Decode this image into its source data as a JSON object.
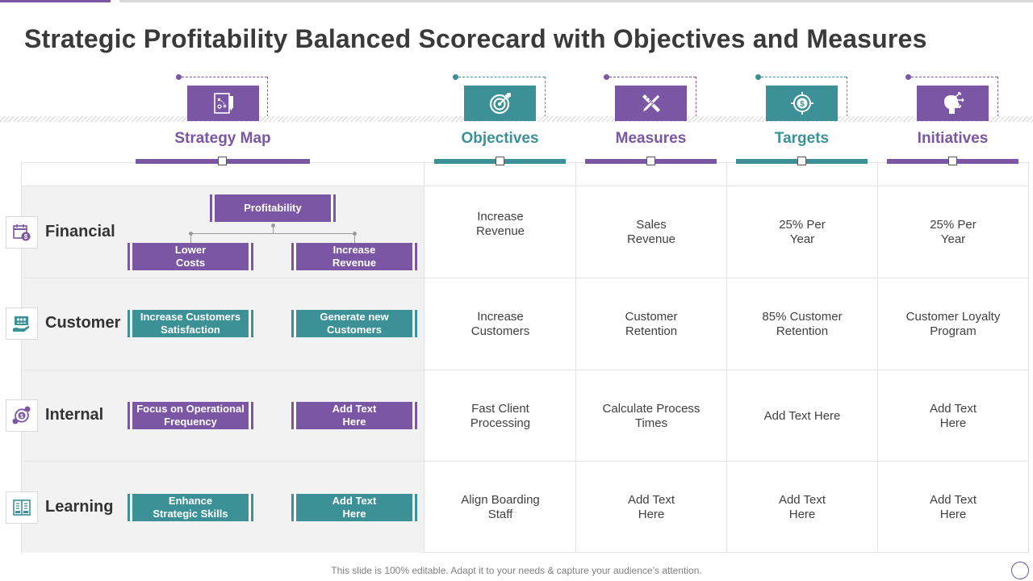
{
  "title": "Strategic Profitability Balanced Scorecard with Objectives and Measures",
  "colors": {
    "purple": "#7a56a4",
    "teal": "#3b9196",
    "shade": "#f2f2f2"
  },
  "headers": [
    {
      "label": "Strategy Map",
      "icon": "strategy-document-icon",
      "color": "purple"
    },
    {
      "label": "Objectives",
      "icon": "target-arrow-icon",
      "color": "teal"
    },
    {
      "label": "Measures",
      "icon": "pencil-ruler-icon",
      "color": "purple"
    },
    {
      "label": "Targets",
      "icon": "dollar-target-icon",
      "color": "teal"
    },
    {
      "label": "Initiatives",
      "icon": "head-arrows-icon",
      "color": "purple"
    }
  ],
  "rows": [
    {
      "category": "Financial",
      "icon": "calendar-dollar-icon",
      "map": {
        "top": "Profitability",
        "left": "Lower Costs",
        "right": "Increase Revenue",
        "color": "purple"
      },
      "objective": "Increase Revenue",
      "measure": "Sales Revenue",
      "target": "25% Per Year",
      "initiative": "25% Per Year"
    },
    {
      "category": "Customer",
      "icon": "customers-hand-icon",
      "map": {
        "left": "Increase Customers Satisfaction",
        "right": "Generate new Customers",
        "color": "teal"
      },
      "objective": "Increase Customers",
      "measure": "Customer Retention",
      "target": "85% Customer Retention",
      "initiative": "Customer Loyalty Program"
    },
    {
      "category": "Internal",
      "icon": "process-cycle-icon",
      "map": {
        "left": "Focus on Operational Frequency",
        "right": "Add Text Here",
        "color": "purple"
      },
      "objective": "Fast Client Processing",
      "measure": "Calculate Process Times",
      "target": "Add Text Here",
      "initiative": "Add Text Here"
    },
    {
      "category": "Learning",
      "icon": "book-icon",
      "map": {
        "left": "Enhance Strategic  Skills",
        "right": "Add Text Here",
        "color": "teal"
      },
      "objective": "Align Boarding Staff",
      "measure": "Add Text Here",
      "target": "Add Text Here",
      "initiative": "Add Text Here"
    }
  ],
  "footer": "This slide is 100% editable. Adapt it to your needs & capture your audience’s attention."
}
